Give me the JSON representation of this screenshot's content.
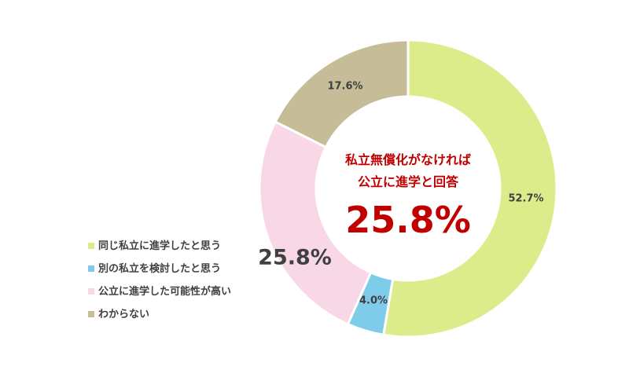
{
  "chart_data": {
    "type": "pie",
    "subtype": "donut",
    "categories": [
      "同じ私立に進学したと思う",
      "別の私立を検討したと思う",
      "公立に進学した可能性が高い",
      "わからない"
    ],
    "values": [
      52.7,
      4.0,
      25.8,
      17.6
    ],
    "labels": [
      "52.7%",
      "4.0%",
      "25.8%",
      "17.6%"
    ],
    "colors": [
      "#dcec8a",
      "#7ecbea",
      "#f8d8e6",
      "#c6bd98"
    ],
    "legend_position": "left",
    "annotation": {
      "line1": "私立無償化がなければ",
      "line2": "公立に進学と回答",
      "value": "25.8%"
    }
  },
  "legend": [
    {
      "label": "同じ私立に進学したと思う",
      "color": "#dcec8a"
    },
    {
      "label": "別の私立を検討したと思う",
      "color": "#7ecbea"
    },
    {
      "label": "公立に進学した可能性が高い",
      "color": "#f8d8e6"
    },
    {
      "label": "わからない",
      "color": "#c6bd98"
    }
  ],
  "slice_labels": {
    "s0": "52.7%",
    "s1": "4.0%",
    "s2": "25.8%",
    "s3": "17.6%"
  },
  "center": {
    "line1": "私立無償化がなければ",
    "line2": "公立に進学と回答",
    "value": "25.8%"
  }
}
